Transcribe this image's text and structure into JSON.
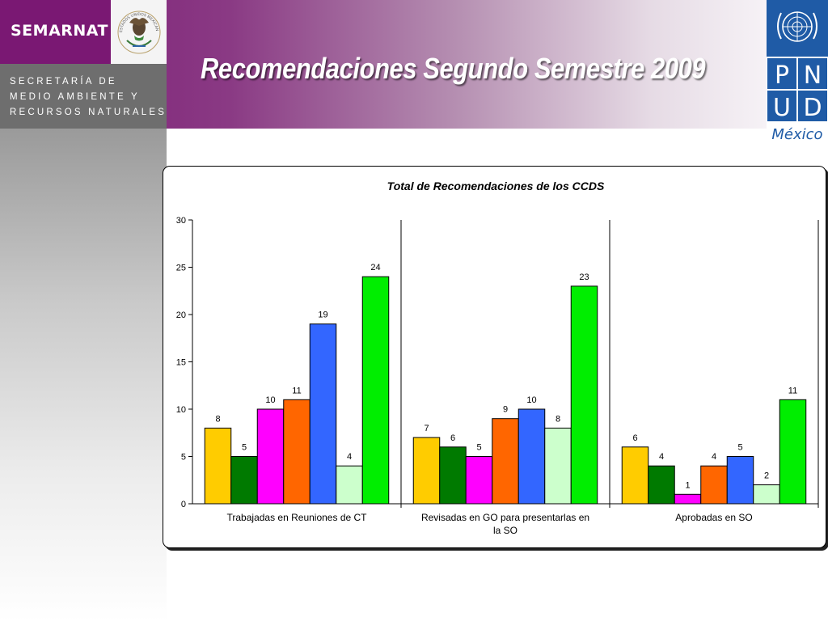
{
  "header": {
    "brand": "SEMARNAT",
    "department_lines": [
      "SECRETARÍA DE",
      "MEDIO AMBIENTE Y",
      "RECURSOS NATURALES"
    ],
    "seal_text": "ESTADOS UNIDOS MEXICANOS",
    "title": "Recomendaciones Segundo Semestre 2009",
    "undp_letters": [
      "P",
      "N",
      "U",
      "D"
    ],
    "undp_country": "México"
  },
  "colors": {
    "purple": "#7a1873",
    "undp_blue": "#1f5ba6",
    "series": [
      "#ffcc00",
      "#007a00",
      "#ff00ff",
      "#ff6600",
      "#3366ff",
      "#ccffcc",
      "#00ee00"
    ]
  },
  "chart_data": {
    "type": "bar",
    "title": "Total de Recomendaciones de los CCDS",
    "categories": [
      [
        "Trabajadas en Reuniones de CT"
      ],
      [
        "Revisadas en GO para presentarlas en",
        "la SO"
      ],
      [
        "Aprobadas en SO"
      ]
    ],
    "series": [
      {
        "values": [
          8,
          7,
          6
        ]
      },
      {
        "values": [
          5,
          6,
          4
        ]
      },
      {
        "values": [
          10,
          5,
          1
        ]
      },
      {
        "values": [
          11,
          9,
          4
        ]
      },
      {
        "values": [
          19,
          10,
          5
        ]
      },
      {
        "values": [
          4,
          8,
          2
        ]
      },
      {
        "values": [
          24,
          23,
          11
        ]
      }
    ],
    "ylim": [
      0,
      30
    ],
    "yticks": [
      0,
      5,
      10,
      15,
      20,
      25,
      30
    ],
    "grid": false,
    "legend": "none",
    "data_labels": true
  }
}
